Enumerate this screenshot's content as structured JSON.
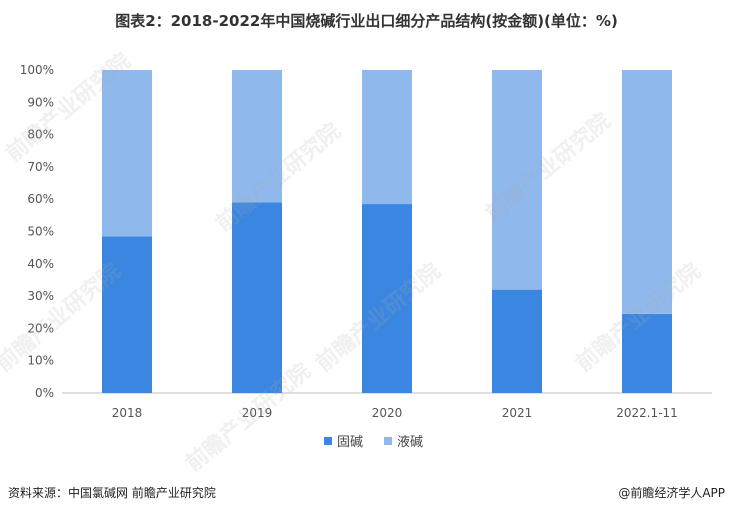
{
  "title": "图表2：2018-2022年中国烧碱行业出口细分产品结构(按金额)(单位：%)",
  "source": "资料来源：中国氯碱网 前瞻产业研究院",
  "brand": "@前瞻经济学人APP",
  "watermark": "前瞻产业研究院",
  "colors": {
    "solid": "#3b86e0",
    "liquid": "#8fb8ec",
    "axis": "#bfbfbf"
  },
  "chart_data": {
    "type": "bar",
    "stacked": true,
    "categories": [
      "2018",
      "2019",
      "2020",
      "2021",
      "2022.1-11"
    ],
    "series": [
      {
        "name": "固碱",
        "values": [
          48.5,
          59.0,
          58.5,
          32.0,
          24.5
        ]
      },
      {
        "name": "液碱",
        "values": [
          51.5,
          41.0,
          41.5,
          68.0,
          75.5
        ]
      }
    ],
    "yticks": [
      "0%",
      "10%",
      "20%",
      "30%",
      "40%",
      "50%",
      "60%",
      "70%",
      "80%",
      "90%",
      "100%"
    ],
    "ylim": [
      0,
      100
    ],
    "legend_position": "bottom"
  }
}
